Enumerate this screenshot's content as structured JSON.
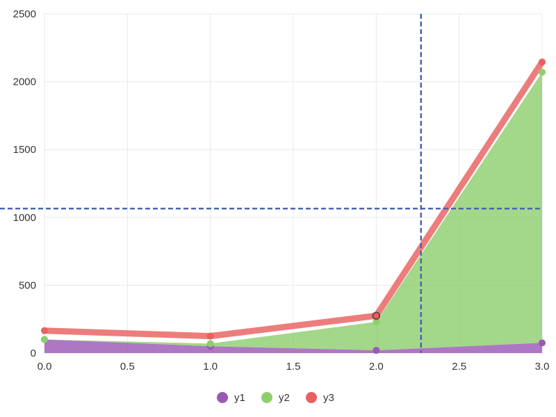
{
  "chart_data": {
    "type": "area",
    "x": [
      0,
      1,
      2,
      3
    ],
    "xlim": [
      0,
      3
    ],
    "ylim": [
      0,
      2500
    ],
    "x_ticks": [
      "0.0",
      "0.5",
      "1.0",
      "1.5",
      "2.0",
      "2.5",
      "3.0"
    ],
    "y_ticks": [
      "0",
      "500",
      "1000",
      "1500",
      "2000",
      "2500"
    ],
    "grid": true,
    "legend_position": "bottom-center",
    "series": [
      {
        "name": "y1",
        "values": [
          100,
          50,
          20,
          75
        ],
        "color": "#9b59b6",
        "style": "filled-area",
        "marker": "circle"
      },
      {
        "name": "y2",
        "values": [
          100,
          70,
          230,
          2070
        ],
        "color": "#8fce6f",
        "style": "filled-area-stacked-on-y1",
        "marker": "circle"
      },
      {
        "name": "y3",
        "values": [
          165,
          125,
          275,
          2145
        ],
        "color": "#e8605f",
        "style": "thick-line",
        "marker": "circle"
      }
    ],
    "crosshair": {
      "x": 2.27,
      "y": 1065,
      "color": "#4a64b5",
      "style": "dashed"
    },
    "highlighted_point": {
      "series": "y3",
      "x": 2
    }
  }
}
